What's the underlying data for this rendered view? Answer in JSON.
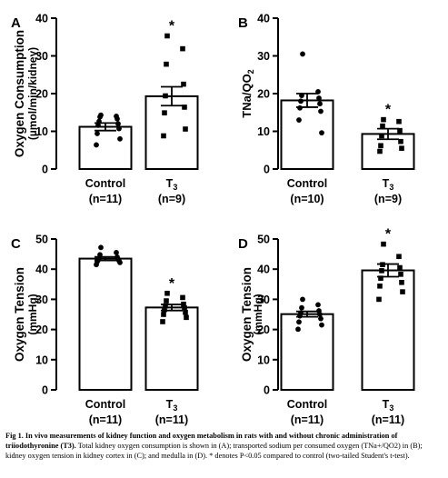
{
  "figure": {
    "caption": {
      "label": "Fig 1.",
      "bold_text": "In vivo measurements of kidney function and oxygen metabolism in rats with and without chronic administration of triiodothyronine (T3).",
      "text": "Total kidney oxygen consumption is shown in (A); transported sodium per consumed oxygen (TNa+/QO2) in (B); kidney oxygen tension in kidney cortex in (C); and medulla in (D). * denotes P<0.05 compared to control (two-tailed Student's t-test)."
    }
  },
  "chart_data": [
    {
      "type": "bar",
      "panel_label": "A",
      "ylabel": "Oxygen Consumption",
      "ylabel_unit": "(µmol/min/kidney)",
      "ylim": [
        0,
        40
      ],
      "yticks": [
        0,
        10,
        20,
        30,
        40
      ],
      "categories": [
        "Control",
        "T3"
      ],
      "category_labels": [
        {
          "name": "Control",
          "sub": "",
          "n": "(n=11)"
        },
        {
          "name": "T",
          "sub": "3",
          "n": "(n=9)"
        }
      ],
      "values": [
        11.2,
        19.3
      ],
      "errors": [
        1.0,
        2.5
      ],
      "significance": [
        "",
        "*"
      ],
      "points": [
        [
          14.3,
          14.0,
          13.8,
          13.3,
          12.6,
          12.0,
          11.6,
          10.7,
          9.4,
          8.0,
          6.4
        ],
        [
          35.3,
          31.9,
          27.8,
          22.5,
          19.4,
          16.4,
          14.9,
          10.6,
          8.8
        ]
      ]
    },
    {
      "type": "bar",
      "panel_label": "B",
      "ylabel": "TNa/QO2",
      "ylim": [
        0,
        40
      ],
      "yticks": [
        0,
        10,
        20,
        30,
        40
      ],
      "categories": [
        "Control",
        "T3"
      ],
      "category_labels": [
        {
          "name": "Control",
          "sub": "",
          "n": "(n=10)"
        },
        {
          "name": "T",
          "sub": "3",
          "n": "(n=9)"
        }
      ],
      "values": [
        18.2,
        9.3
      ],
      "errors": [
        1.8,
        1.4
      ],
      "significance": [
        "",
        "*"
      ],
      "points": [
        [
          30.5,
          20.5,
          19.5,
          18.8,
          18.0,
          17.3,
          16.2,
          15.3,
          13.0,
          9.6
        ],
        [
          13.1,
          12.6,
          11.4,
          10.2,
          8.8,
          7.3,
          6.2,
          5.5,
          4.7
        ]
      ]
    },
    {
      "type": "bar",
      "panel_label": "C",
      "ylabel": "Oxygen Tension",
      "ylabel_unit": "(mmHg)",
      "ylim": [
        0,
        50
      ],
      "yticks": [
        0,
        10,
        20,
        30,
        40,
        50
      ],
      "categories": [
        "Control",
        "T3"
      ],
      "category_labels": [
        {
          "name": "Control",
          "sub": "",
          "n": "(n=11)"
        },
        {
          "name": "T",
          "sub": "3",
          "n": "(n=11)"
        }
      ],
      "values": [
        43.5,
        27.3
      ],
      "errors": [
        0.6,
        1.0
      ],
      "significance": [
        "",
        "*"
      ],
      "points": [
        [
          47.2,
          45.5,
          44.8,
          44.0,
          43.6,
          43.3,
          43.0,
          42.8,
          42.5,
          42.2,
          41.5
        ],
        [
          32.0,
          30.6,
          29.5,
          28.4,
          27.8,
          27.2,
          26.6,
          25.7,
          25.0,
          24.0,
          22.6
        ]
      ]
    },
    {
      "type": "bar",
      "panel_label": "D",
      "ylabel": "Oxygen Tension",
      "ylabel_unit": "(mmHg)",
      "ylim": [
        0,
        50
      ],
      "yticks": [
        0,
        10,
        20,
        30,
        40,
        50
      ],
      "categories": [
        "Control",
        "T3"
      ],
      "category_labels": [
        {
          "name": "Control",
          "sub": "",
          "n": "(n=11)"
        },
        {
          "name": "T",
          "sub": "3",
          "n": "(n=11)"
        }
      ],
      "values": [
        25.1,
        39.6
      ],
      "errors": [
        0.9,
        2.1
      ],
      "significance": [
        "",
        "*"
      ],
      "points": [
        [
          30.0,
          28.2,
          27.2,
          26.2,
          25.5,
          25.0,
          24.5,
          23.6,
          22.5,
          21.5,
          20.1
        ],
        [
          48.3,
          44.2,
          41.5,
          40.5,
          39.5,
          38.3,
          37.0,
          35.6,
          34.4,
          32.5,
          30.0
        ]
      ]
    }
  ]
}
